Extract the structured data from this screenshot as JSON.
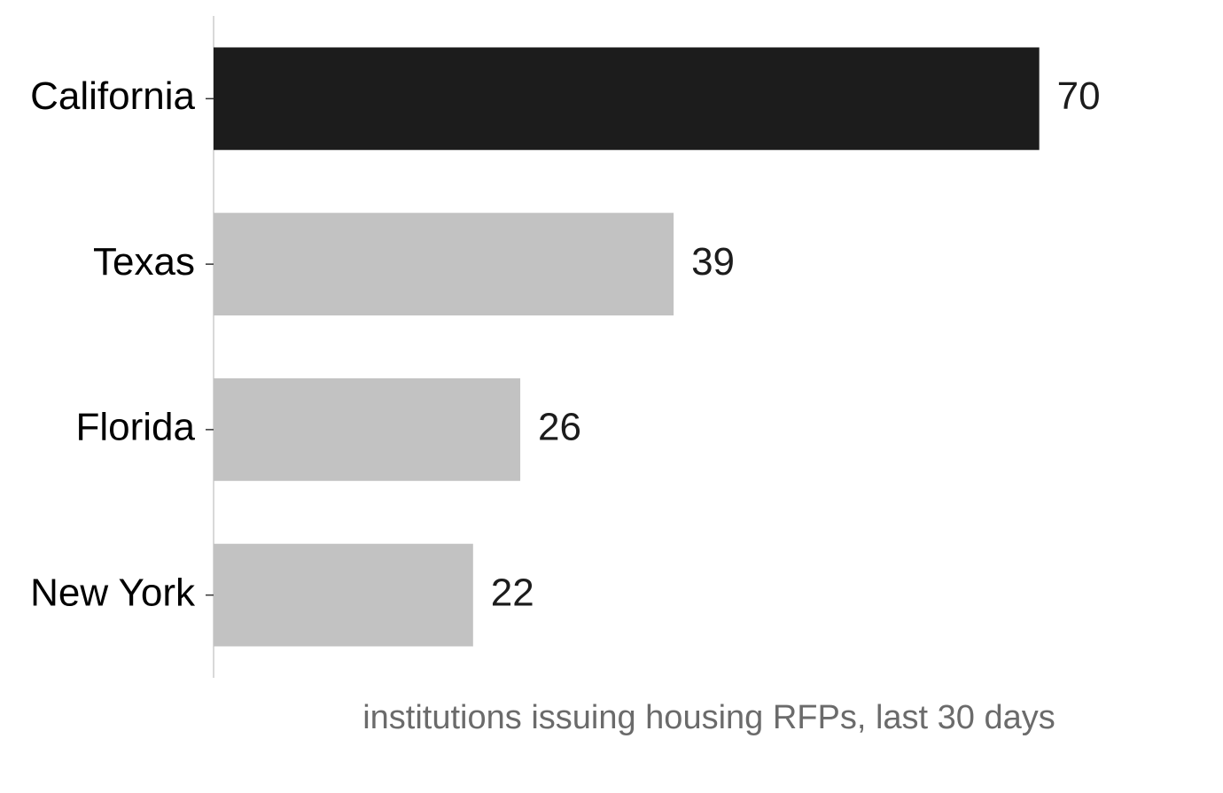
{
  "chart_data": {
    "type": "barh",
    "categories": [
      "California",
      "Texas",
      "Florida",
      "New York"
    ],
    "values": [
      70,
      39,
      26,
      22
    ],
    "colors": [
      "#1c1c1c",
      "#c2c2c2",
      "#c2c2c2",
      "#c2c2c2"
    ],
    "xlabel": "institutions issuing housing RFPs, last 30 days",
    "xlim": [
      0,
      84
    ]
  }
}
